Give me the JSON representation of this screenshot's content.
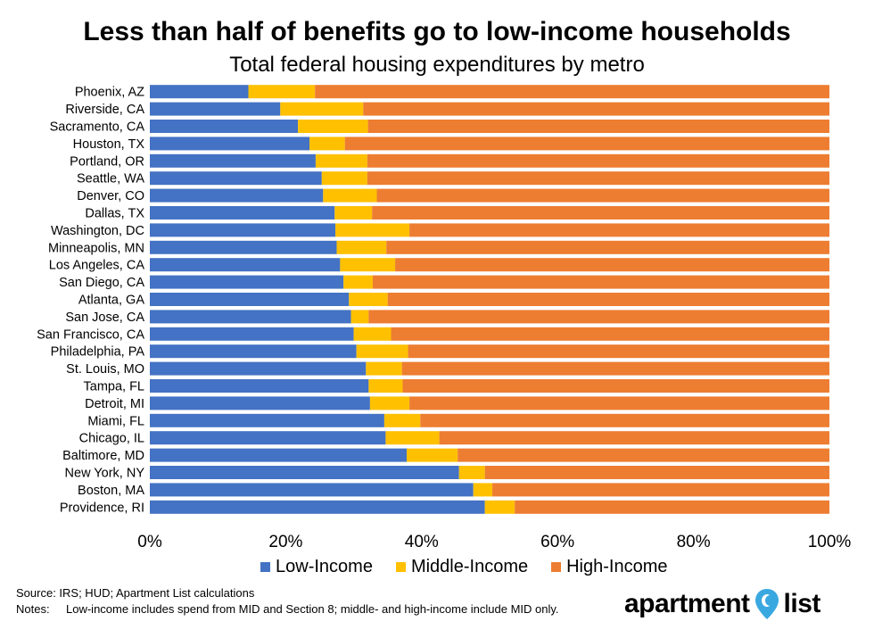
{
  "chart_data": {
    "type": "bar",
    "orientation": "horizontal",
    "stacked": true,
    "title": "Less than half of benefits go to low-income households",
    "subtitle": "Total federal housing expenditures by metro",
    "categories": [
      "Phoenix, AZ",
      "Riverside, CA",
      "Sacramento, CA",
      "Houston, TX",
      "Portland, OR",
      "Seattle, WA",
      "Denver, CO",
      "Dallas, TX",
      "Washington, DC",
      "Minneapolis, MN",
      "Los Angeles, CA",
      "San Diego, CA",
      "Atlanta, GA",
      "San Jose, CA",
      "San Francisco, CA",
      "Philadelphia, PA",
      "St. Louis, MO",
      "Tampa, FL",
      "Detroit, MI",
      "Miami, FL",
      "Chicago, IL",
      "Baltimore, MD",
      "New York, NY",
      "Boston, MA",
      "Providence, RI"
    ],
    "series": [
      {
        "name": "Low-Income",
        "color": "#4472C4",
        "values": [
          14.5,
          19.2,
          21.8,
          23.5,
          24.4,
          25.3,
          25.5,
          27.2,
          27.3,
          27.5,
          28.0,
          28.5,
          29.3,
          29.6,
          30.0,
          30.4,
          31.8,
          32.2,
          32.4,
          34.5,
          34.7,
          37.8,
          45.5,
          47.6,
          49.3
        ]
      },
      {
        "name": "Middle-Income",
        "color": "#FFC000",
        "values": [
          9.8,
          12.2,
          10.3,
          5.2,
          7.6,
          6.7,
          7.9,
          5.5,
          10.9,
          7.3,
          8.1,
          4.3,
          5.7,
          2.6,
          5.5,
          7.6,
          5.3,
          5.0,
          5.8,
          5.3,
          7.9,
          7.5,
          3.8,
          2.8,
          4.4
        ]
      },
      {
        "name": "High-Income",
        "color": "#ED7D31",
        "values": [
          75.7,
          68.6,
          67.9,
          71.3,
          68.0,
          68.0,
          66.6,
          67.3,
          61.8,
          65.2,
          63.9,
          67.2,
          65.0,
          67.8,
          64.5,
          62.0,
          62.9,
          62.8,
          61.8,
          60.2,
          57.4,
          54.7,
          50.7,
          49.6,
          46.3
        ]
      }
    ],
    "xlim": [
      0,
      100
    ],
    "x_ticks": [
      "0%",
      "20%",
      "40%",
      "60%",
      "80%",
      "100%"
    ],
    "legend_position": "bottom",
    "grid": false
  },
  "footer": {
    "source": "Source: IRS; HUD; Apartment List calculations",
    "notes_label": "Notes:",
    "notes_text": "Low-income includes spend from MID and Section 8; middle- and high-income include MID only."
  },
  "logo": {
    "text_part1": "apartment",
    "text_part2": "list",
    "pin_icon": "location-pin-icon",
    "pin_color": "#3AA8E0"
  }
}
